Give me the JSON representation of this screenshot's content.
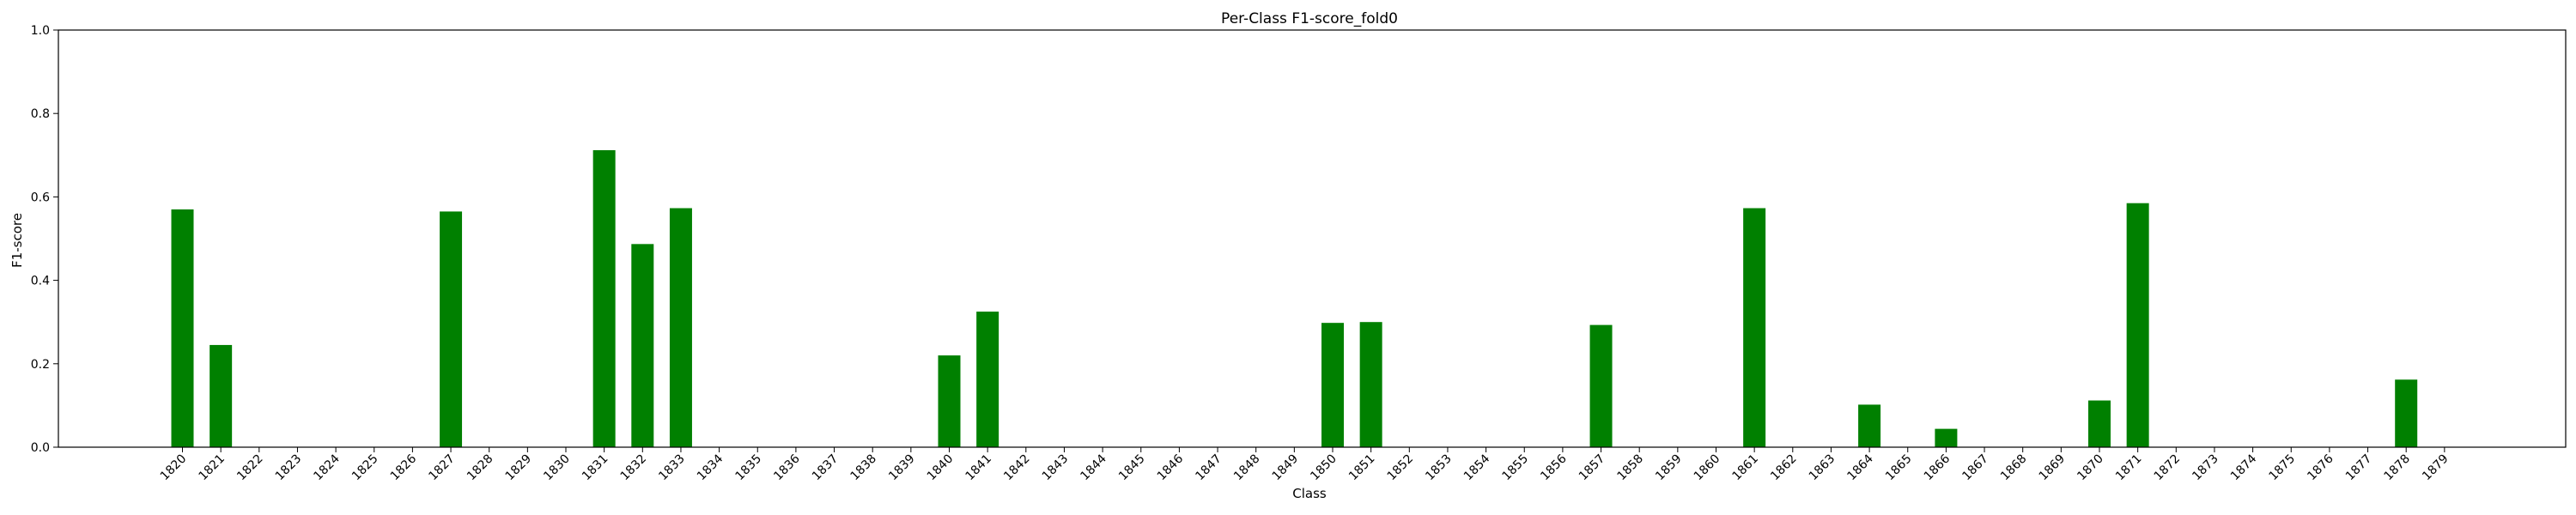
{
  "chart_data": {
    "type": "bar",
    "title": "Per-Class F1-score_fold0",
    "xlabel": "Class",
    "ylabel": "F1-score",
    "ylim": [
      0,
      1.0
    ],
    "yticks": [
      "0.0",
      "0.2",
      "0.4",
      "0.6",
      "0.8",
      "1.0"
    ],
    "grid": false,
    "bar_color": "#008000",
    "categories": [
      "1820",
      "1821",
      "1822",
      "1823",
      "1824",
      "1825",
      "1826",
      "1827",
      "1828",
      "1829",
      "1830",
      "1831",
      "1832",
      "1833",
      "1834",
      "1835",
      "1836",
      "1837",
      "1838",
      "1839",
      "1840",
      "1841",
      "1842",
      "1843",
      "1844",
      "1845",
      "1846",
      "1847",
      "1848",
      "1849",
      "1850",
      "1851",
      "1852",
      "1853",
      "1854",
      "1855",
      "1856",
      "1857",
      "1858",
      "1859",
      "1860",
      "1861",
      "1862",
      "1863",
      "1864",
      "1865",
      "1866",
      "1867",
      "1868",
      "1869",
      "1870",
      "1871",
      "1872",
      "1873",
      "1874",
      "1875",
      "1876",
      "1877",
      "1878",
      "1879"
    ],
    "values": [
      0.57,
      0.245,
      0,
      0,
      0,
      0,
      0,
      0.565,
      0,
      0,
      0,
      0.712,
      0.487,
      0.573,
      0,
      0,
      0,
      0,
      0,
      0,
      0.22,
      0.325,
      0,
      0,
      0,
      0,
      0,
      0,
      0,
      0,
      0.298,
      0.3,
      0,
      0,
      0,
      0,
      0,
      0.293,
      0,
      0,
      0,
      0.573,
      0,
      0,
      0.102,
      0,
      0.044,
      0,
      0,
      0,
      0.112,
      0.585,
      0,
      0,
      0,
      0,
      0,
      0,
      0.162,
      0
    ]
  }
}
